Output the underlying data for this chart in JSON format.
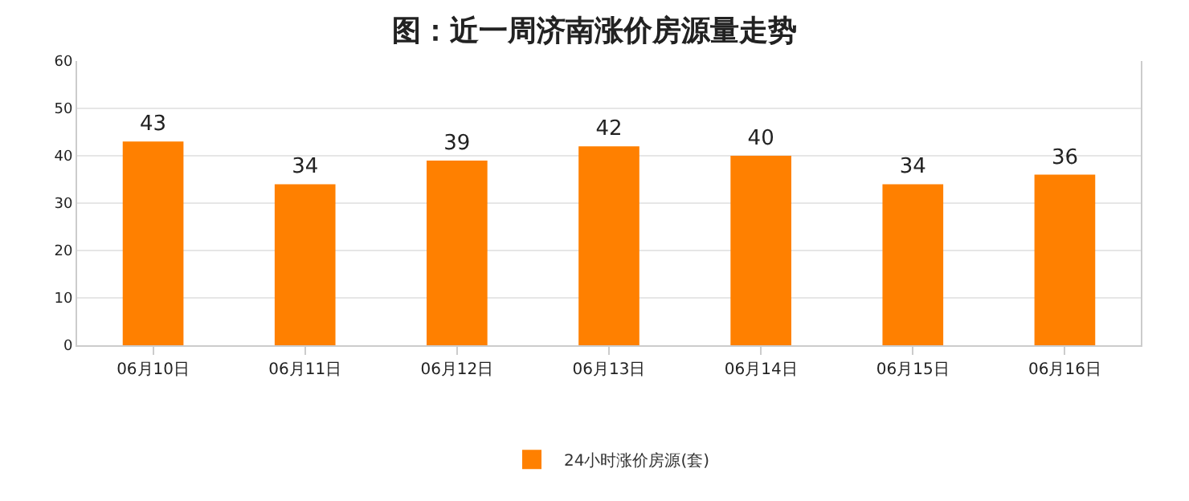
{
  "chart_data": {
    "type": "bar",
    "title": "图：近一周济南涨价房源量走势",
    "categories": [
      "06月10日",
      "06月11日",
      "06月12日",
      "06月13日",
      "06月14日",
      "06月15日",
      "06月16日"
    ],
    "series": [
      {
        "name": "24小时涨价房源(套)",
        "color": "#ff8000",
        "values": [
          43,
          34,
          39,
          42,
          40,
          34,
          36
        ]
      }
    ],
    "ylim": [
      0,
      60
    ],
    "yticks": [
      0,
      10,
      20,
      30,
      40,
      50,
      60
    ],
    "grid": "y",
    "legend": "bottom",
    "data_labels": true
  }
}
